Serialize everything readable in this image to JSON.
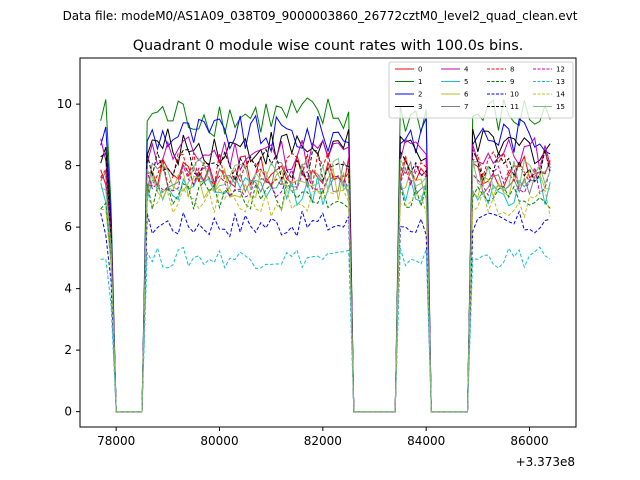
{
  "suptitle": "Data file: modeM0/AS1A09_038T09_9000003860_26772cztM0_level2_quad_clean.evt",
  "chart_data": {
    "type": "line",
    "title": "Quadrant 0 module wise count rates with 100.0s bins.",
    "xlabel": "",
    "ylabel": "",
    "x_offset_label": "+3.373e8",
    "xlim": [
      77300,
      86900
    ],
    "ylim": [
      -0.5,
      11.5
    ],
    "xticks": [
      78000,
      80000,
      82000,
      84000,
      86000
    ],
    "xtick_labels": [
      "78000",
      "80000",
      "82000",
      "84000",
      "86000"
    ],
    "yticks": [
      0,
      2,
      4,
      6,
      8,
      10
    ],
    "ytick_labels": [
      "0",
      "2",
      "4",
      "6",
      "8",
      "10"
    ],
    "grid": false,
    "legend_position": "top-right",
    "segments": [
      {
        "start": 77700,
        "end": 77900
      },
      {
        "start": 78600,
        "end": 82500
      },
      {
        "start": 83500,
        "end": 84000
      },
      {
        "start": 84900,
        "end": 86400
      }
    ],
    "gaps": [
      {
        "start": 78000,
        "end": 78500
      },
      {
        "start": 82600,
        "end": 83400
      },
      {
        "start": 84200,
        "end": 84800
      }
    ],
    "series": [
      {
        "name": "0",
        "color": "#ff0000",
        "style": "solid",
        "level": 7.8
      },
      {
        "name": "1",
        "color": "#008000",
        "style": "solid",
        "level": 9.6
      },
      {
        "name": "2",
        "color": "#0000ff",
        "style": "solid",
        "level": 9.0
      },
      {
        "name": "3",
        "color": "#000000",
        "style": "solid",
        "level": 8.6
      },
      {
        "name": "4",
        "color": "#bf00bf",
        "style": "solid",
        "level": 8.4
      },
      {
        "name": "5",
        "color": "#17becf",
        "style": "solid",
        "level": 7.2
      },
      {
        "name": "6",
        "color": "#bcbd22",
        "style": "solid",
        "level": 7.4
      },
      {
        "name": "7",
        "color": "#7f7f7f",
        "style": "solid",
        "level": 7.6
      },
      {
        "name": "8",
        "color": "#ff0000",
        "style": "dashed",
        "level": 7.9
      },
      {
        "name": "9",
        "color": "#008000",
        "style": "dashed",
        "level": 7.0
      },
      {
        "name": "10",
        "color": "#0000ff",
        "style": "dashed",
        "level": 6.1
      },
      {
        "name": "11",
        "color": "#000000",
        "style": "dashed",
        "level": 8.0
      },
      {
        "name": "12",
        "color": "#bf00bf",
        "style": "dashed",
        "level": 7.5
      },
      {
        "name": "13",
        "color": "#17becf",
        "style": "dashed",
        "level": 5.0
      },
      {
        "name": "14",
        "color": "#bcbd22",
        "style": "dashed",
        "level": 6.8
      },
      {
        "name": "15",
        "color": "#7fbf7f",
        "style": "solid",
        "level": 7.7
      }
    ]
  }
}
